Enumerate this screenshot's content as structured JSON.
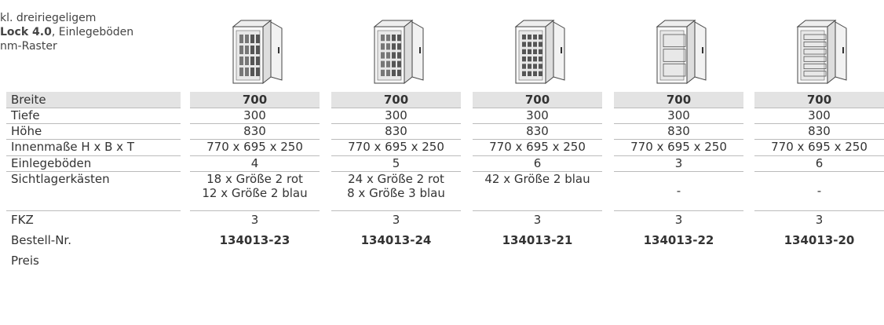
{
  "intro": {
    "line1": "kl. dreiriegeligem",
    "line2_bold": "Lock 4.0",
    "line2_rest": ", Einlegeböden",
    "line3": "nm-Raster"
  },
  "table": {
    "rows": [
      {
        "label": "Breite",
        "values": [
          "700",
          "700",
          "700",
          "700",
          "700"
        ]
      },
      {
        "label": "Tiefe",
        "values": [
          "300",
          "300",
          "300",
          "300",
          "300"
        ]
      },
      {
        "label": "Höhe",
        "values": [
          "830",
          "830",
          "830",
          "830",
          "830"
        ]
      },
      {
        "label": "Innenmaße H x B x T",
        "values": [
          "770 x 695 x 250",
          "770 x 695 x 250",
          "770 x 695 x 250",
          "770 x 695 x 250",
          "770 x 695 x 250"
        ]
      },
      {
        "label": "Einlegeböden",
        "values": [
          "4",
          "5",
          "6",
          "3",
          "6"
        ]
      },
      {
        "label": "Sichtlagerkästen",
        "values": [
          [
            "18 x Größe 2 rot",
            "12 x Größe 2 blau"
          ],
          [
            "24 x Größe 2 rot",
            "8 x Größe 3 blau"
          ],
          [
            "42 x Größe 2 blau"
          ],
          [
            "-"
          ],
          [
            "-"
          ]
        ]
      },
      {
        "label": "FKZ",
        "values": [
          "3",
          "3",
          "3",
          "3",
          "3"
        ]
      },
      {
        "label": "Bestell-Nr.",
        "values": [
          "134013-23",
          "134013-24",
          "134013-21",
          "134013-22",
          "134013-20"
        ]
      },
      {
        "label": "Preis"
      }
    ]
  }
}
